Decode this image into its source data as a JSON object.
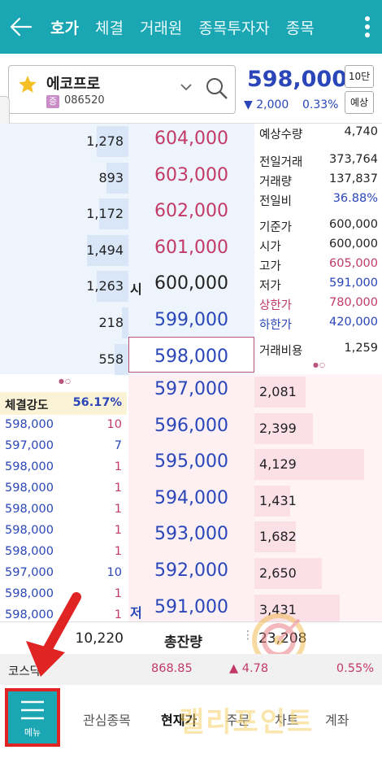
{
  "header": {
    "tabs": [
      "호가",
      "체결",
      "거래원",
      "종목투자자",
      "종목"
    ],
    "active_tab": 0
  },
  "stock": {
    "name": "에코프로",
    "market_badge": "증",
    "code": "086520",
    "price": "598,000",
    "change": "2,000",
    "change_pct": "0.33%",
    "btn_depth": "10단",
    "btn_expected": "예상"
  },
  "asks": [
    {
      "qty": "1,278",
      "price": "604,000",
      "mark": "",
      "bar": 0.26
    },
    {
      "qty": "893",
      "price": "603,000",
      "mark": "",
      "bar": 0.18
    },
    {
      "qty": "1,172",
      "price": "602,000",
      "mark": "",
      "bar": 0.24
    },
    {
      "qty": "1,494",
      "price": "601,000",
      "mark": "",
      "bar": 0.34
    },
    {
      "qty": "1,263",
      "price": "600,000",
      "mark": "시",
      "bar": 0.26
    },
    {
      "qty": "218",
      "price": "599,000",
      "mark": "",
      "bar": 0.05
    },
    {
      "qty": "558",
      "price": "598,000",
      "mark": "",
      "bar": 0.11
    }
  ],
  "bids": [
    {
      "qty": "2,081",
      "price": "597,000",
      "mark": "",
      "bar": 0.42
    },
    {
      "qty": "2,399",
      "price": "596,000",
      "mark": "",
      "bar": 0.48
    },
    {
      "qty": "4,129",
      "price": "595,000",
      "mark": "",
      "bar": 0.9
    },
    {
      "qty": "1,431",
      "price": "594,000",
      "mark": "",
      "bar": 0.29
    },
    {
      "qty": "1,682",
      "price": "593,000",
      "mark": "",
      "bar": 0.34
    },
    {
      "qty": "2,650",
      "price": "592,000",
      "mark": "",
      "bar": 0.55
    },
    {
      "qty": "3,431",
      "price": "591,000",
      "mark": "저",
      "bar": 0.7
    }
  ],
  "info": {
    "expected_qty_label": "예상수량",
    "expected_qty": "4,740",
    "prev_volume_label": "전일거래",
    "prev_volume": "373,764",
    "volume_label": "거래량",
    "volume": "137,837",
    "prev_ratio_label": "전일비",
    "prev_ratio": "36.88%",
    "base_label": "기준가",
    "base": "600,000",
    "open_label": "시가",
    "open": "600,000",
    "high_label": "고가",
    "high": "605,000",
    "low_label": "저가",
    "low": "591,000",
    "upper_label": "상한가",
    "upper": "780,000",
    "lower_label": "하한가",
    "lower": "420,000",
    "cost_label": "거래비용",
    "cost": "1,259"
  },
  "strength": {
    "label": "체결강도",
    "value": "56.17%"
  },
  "trades": [
    {
      "price": "598,000",
      "qty": "10",
      "color": "red"
    },
    {
      "price": "597,000",
      "qty": "7",
      "color": "blue"
    },
    {
      "price": "598,000",
      "qty": "1",
      "color": "red"
    },
    {
      "price": "598,000",
      "qty": "1",
      "color": "red"
    },
    {
      "price": "598,000",
      "qty": "1",
      "color": "red"
    },
    {
      "price": "598,000",
      "qty": "1",
      "color": "red"
    },
    {
      "price": "598,000",
      "qty": "1",
      "color": "red"
    },
    {
      "price": "597,000",
      "qty": "10",
      "color": "blue"
    },
    {
      "price": "598,000",
      "qty": "1",
      "color": "red"
    },
    {
      "price": "598,000",
      "qty": "1",
      "color": "red"
    }
  ],
  "summary": {
    "ask_total": "10,220",
    "label": "총잔량",
    "bid_total": "23,208"
  },
  "index": {
    "name": "코스닥",
    "value": "868.85",
    "change": "4.78",
    "pct": "0.55%"
  },
  "bottom": {
    "menu_label": "메뉴",
    "items": [
      "관심종목",
      "현재가",
      "주문",
      "차트",
      "계좌"
    ],
    "active": 1
  },
  "watermark": "랠리포인트",
  "colors": {
    "accent": "#1aa6b3",
    "up": "#c33a66",
    "down": "#2a46b8",
    "highlight": "#e02424"
  }
}
